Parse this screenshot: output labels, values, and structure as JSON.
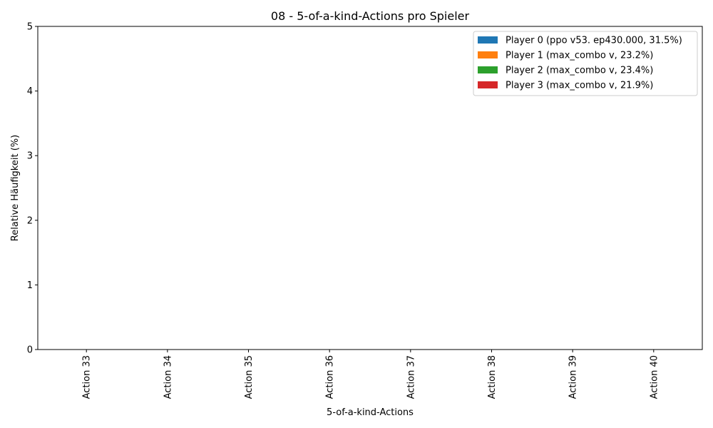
{
  "chart_data": {
    "type": "bar",
    "title": "08 - 5-of-a-kind-Actions pro Spieler",
    "xlabel": "5-of-a-kind-Actions",
    "ylabel": "Relative Häufigkeit (%)",
    "ylim": [
      0,
      5
    ],
    "yticks": [
      "0",
      "1",
      "2",
      "3",
      "4",
      "5"
    ],
    "categories": [
      "Action 33",
      "Action 34",
      "Action 35",
      "Action 36",
      "Action 37",
      "Action 38",
      "Action 39",
      "Action 40"
    ],
    "grid": false,
    "legend_position": "top-right",
    "series": [
      {
        "name": "Player 0 (ppo v53. ep430.000, 31.5%)",
        "color": "#1f77b4",
        "values": [
          0,
          0,
          0,
          0,
          0,
          0,
          0,
          0
        ]
      },
      {
        "name": "Player 1 (max_combo v, 23.2%)",
        "color": "#ff7f0e",
        "values": [
          0,
          0,
          0,
          0,
          0,
          0,
          0,
          0
        ]
      },
      {
        "name": "Player 2 (max_combo v, 23.4%)",
        "color": "#2ca02c",
        "values": [
          0,
          0,
          0,
          0,
          0,
          0,
          0,
          0
        ]
      },
      {
        "name": "Player 3 (max_combo v, 21.9%)",
        "color": "#d62728",
        "values": [
          0,
          0,
          0,
          0,
          0,
          0,
          0,
          0
        ]
      }
    ]
  }
}
